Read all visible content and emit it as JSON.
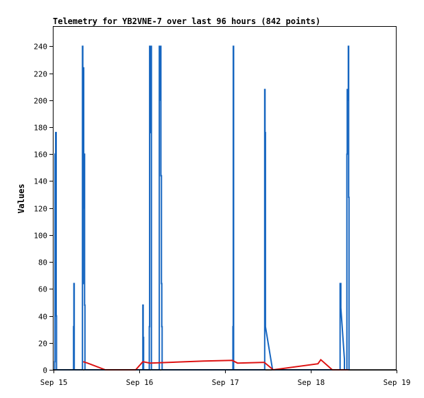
{
  "chart_data": {
    "type": "line",
    "title": "Telemetry for YB2VNE-7 over last 96 hours (842 points)",
    "ylabel": "Values",
    "xlabel": "",
    "x_ticks": [
      {
        "t": 0,
        "label": "Sep 15"
      },
      {
        "t": 24,
        "label": "Sep 16"
      },
      {
        "t": 48,
        "label": "Sep 17"
      },
      {
        "t": 72,
        "label": "Sep 18"
      },
      {
        "t": 96,
        "label": "Sep 19"
      }
    ],
    "xlim": [
      0,
      96
    ],
    "ylim": [
      0,
      255
    ],
    "y_ticks": [
      0,
      20,
      40,
      60,
      80,
      100,
      120,
      140,
      160,
      180,
      200,
      220,
      240
    ],
    "grid": false,
    "colors": {
      "series_blue": "#1565c0",
      "series_red": "#dd1111",
      "series_black": "#000000",
      "axis": "#000000",
      "background": "#ffffff"
    },
    "series": [
      {
        "key": "blue",
        "points": [
          [
            0.3,
            0
          ],
          [
            0.3,
            6
          ],
          [
            0.4,
            6
          ],
          [
            0.4,
            160
          ],
          [
            0.55,
            160
          ],
          [
            0.55,
            80
          ],
          [
            0.6,
            80
          ],
          [
            0.6,
            176
          ],
          [
            0.75,
            176
          ],
          [
            0.75,
            40
          ],
          [
            0.85,
            40
          ],
          [
            0.85,
            0
          ],
          [
            5.6,
            0
          ],
          [
            5.6,
            32
          ],
          [
            5.7,
            32
          ],
          [
            5.7,
            64
          ],
          [
            5.8,
            64
          ],
          [
            5.8,
            0
          ],
          [
            8.1,
            0
          ],
          [
            8.1,
            240
          ],
          [
            8.2,
            240
          ],
          [
            8.2,
            64
          ],
          [
            8.3,
            64
          ],
          [
            8.3,
            224
          ],
          [
            8.45,
            224
          ],
          [
            8.45,
            120
          ],
          [
            8.55,
            120
          ],
          [
            8.55,
            160
          ],
          [
            8.7,
            160
          ],
          [
            8.7,
            48
          ],
          [
            8.8,
            48
          ],
          [
            8.8,
            0
          ],
          [
            25.0,
            0
          ],
          [
            25.0,
            48
          ],
          [
            25.1,
            48
          ],
          [
            25.1,
            24
          ],
          [
            25.2,
            24
          ],
          [
            25.2,
            0
          ],
          [
            26.8,
            0
          ],
          [
            26.8,
            32
          ],
          [
            26.9,
            32
          ],
          [
            26.9,
            240
          ],
          [
            27.0,
            240
          ],
          [
            27.0,
            176
          ],
          [
            27.1,
            176
          ],
          [
            27.1,
            224
          ],
          [
            27.25,
            224
          ],
          [
            27.25,
            240
          ],
          [
            27.4,
            240
          ],
          [
            27.4,
            0
          ],
          [
            29.6,
            0
          ],
          [
            29.6,
            240
          ],
          [
            29.8,
            240
          ],
          [
            29.8,
            200
          ],
          [
            29.9,
            200
          ],
          [
            29.9,
            240
          ],
          [
            30.05,
            240
          ],
          [
            30.05,
            144
          ],
          [
            30.2,
            144
          ],
          [
            30.2,
            64
          ],
          [
            30.3,
            64
          ],
          [
            30.3,
            32
          ],
          [
            30.4,
            32
          ],
          [
            30.4,
            0
          ],
          [
            50.2,
            0
          ],
          [
            50.2,
            32
          ],
          [
            50.3,
            32
          ],
          [
            50.3,
            240
          ],
          [
            50.4,
            240
          ],
          [
            50.4,
            0
          ],
          [
            59.1,
            0
          ],
          [
            59.1,
            208
          ],
          [
            59.2,
            208
          ],
          [
            59.2,
            176
          ],
          [
            59.3,
            176
          ],
          [
            59.3,
            32
          ],
          [
            61.3,
            0
          ],
          [
            80.2,
            0
          ],
          [
            80.2,
            64
          ],
          [
            80.4,
            64
          ],
          [
            80.4,
            46
          ],
          [
            81.4,
            8
          ],
          [
            81.4,
            0
          ],
          [
            82.1,
            0
          ],
          [
            82.1,
            160
          ],
          [
            82.2,
            160
          ],
          [
            82.2,
            208
          ],
          [
            82.35,
            208
          ],
          [
            82.35,
            200
          ],
          [
            82.5,
            200
          ],
          [
            82.5,
            240
          ],
          [
            82.6,
            240
          ],
          [
            82.6,
            128
          ],
          [
            82.7,
            128
          ],
          [
            82.7,
            0
          ]
        ]
      },
      {
        "key": "red",
        "points": [
          [
            8.3,
            6
          ],
          [
            9.5,
            5
          ],
          [
            14.5,
            0
          ],
          [
            23.0,
            0
          ],
          [
            25.0,
            6
          ],
          [
            27.0,
            5
          ],
          [
            42.0,
            6.5
          ],
          [
            50.0,
            7
          ],
          [
            51.5,
            5
          ],
          [
            59.0,
            5.5
          ],
          [
            61.5,
            0
          ],
          [
            74.0,
            4.5
          ],
          [
            74.8,
            7.5
          ],
          [
            78.0,
            0
          ],
          [
            82.5,
            0
          ]
        ]
      },
      {
        "key": "black",
        "points": [
          [
            0,
            0
          ],
          [
            96,
            0
          ]
        ]
      }
    ]
  }
}
